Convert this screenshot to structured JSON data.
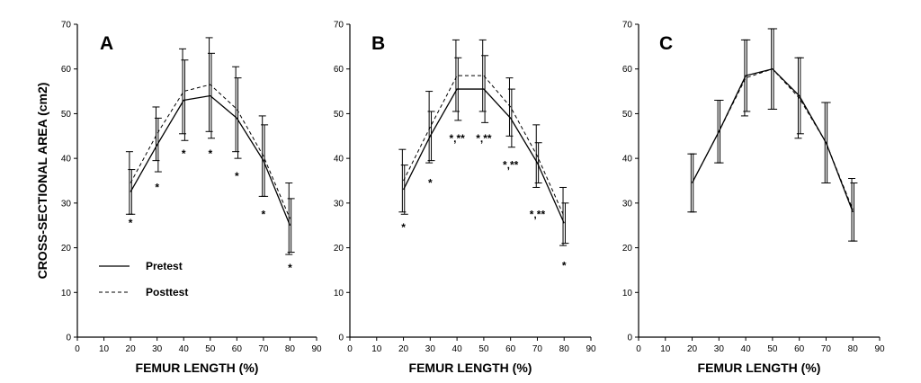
{
  "figure": {
    "ylabel": "CROSS-SECTIONAL AREA (cm2)",
    "legend": {
      "pretest_label": "Pretest",
      "posttest_label": "Posttest",
      "placement": "lower-left of panel A"
    }
  },
  "chart_data": [
    {
      "type": "line",
      "panel": "A",
      "xlabel": "FEMUR LENGTH (%)",
      "xlim": [
        0,
        90
      ],
      "ylim": [
        0,
        70
      ],
      "xticks": [
        0,
        10,
        20,
        30,
        40,
        50,
        60,
        70,
        80,
        90
      ],
      "yticks": [
        0,
        10,
        20,
        30,
        40,
        50,
        60,
        70
      ],
      "x": [
        20,
        30,
        40,
        50,
        60,
        70,
        80
      ],
      "series": [
        {
          "name": "Pretest",
          "style": "solid",
          "values": [
            32.5,
            43,
            53,
            54,
            49,
            39.5,
            25
          ],
          "err": [
            5,
            6,
            9,
            9.5,
            9,
            8,
            6
          ]
        },
        {
          "name": "Posttest",
          "style": "dashed",
          "values": [
            34.5,
            45.5,
            55,
            56.5,
            51,
            40.5,
            26.5
          ],
          "err": [
            7,
            6,
            9.5,
            10.5,
            9.5,
            9,
            8
          ]
        }
      ],
      "sig_markers": [
        {
          "x": 20,
          "y": 25.5,
          "text": "*"
        },
        {
          "x": 30,
          "y": 33.5,
          "text": "*"
        },
        {
          "x": 40,
          "y": 41,
          "text": "*"
        },
        {
          "x": 50,
          "y": 41,
          "text": "*"
        },
        {
          "x": 60,
          "y": 36,
          "text": "*"
        },
        {
          "x": 70,
          "y": 27.5,
          "text": "*"
        },
        {
          "x": 80,
          "y": 15.5,
          "text": "*"
        }
      ]
    },
    {
      "type": "line",
      "panel": "B",
      "xlabel": "FEMUR LENGTH (%)",
      "xlim": [
        0,
        90
      ],
      "ylim": [
        0,
        70
      ],
      "xticks": [
        0,
        10,
        20,
        30,
        40,
        50,
        60,
        70,
        80,
        90
      ],
      "yticks": [
        0,
        10,
        20,
        30,
        40,
        50,
        60,
        70
      ],
      "x": [
        20,
        30,
        40,
        50,
        60,
        70,
        80
      ],
      "series": [
        {
          "name": "Pretest",
          "style": "solid",
          "values": [
            33,
            45,
            55.5,
            55.5,
            49,
            39,
            25.5
          ],
          "err": [
            5.5,
            5.5,
            7,
            7.5,
            6.5,
            4.5,
            4.5
          ]
        },
        {
          "name": "Posttest",
          "style": "dashed",
          "values": [
            35,
            47,
            58.5,
            58.5,
            51.5,
            40.5,
            27
          ],
          "err": [
            7,
            8,
            8,
            8,
            6.5,
            7,
            6.5
          ]
        }
      ],
      "sig_markers": [
        {
          "x": 20,
          "y": 24.5,
          "text": "*"
        },
        {
          "x": 30,
          "y": 34.5,
          "text": "*"
        },
        {
          "x": 40,
          "y": 44.5,
          "text": "*,**"
        },
        {
          "x": 50,
          "y": 44.5,
          "text": "*,**"
        },
        {
          "x": 60,
          "y": 38.5,
          "text": "*,**"
        },
        {
          "x": 70,
          "y": 27.5,
          "text": "*,**"
        },
        {
          "x": 80,
          "y": 16,
          "text": "*"
        }
      ]
    },
    {
      "type": "line",
      "panel": "C",
      "xlabel": "FEMUR LENGTH (%)",
      "xlim": [
        0,
        90
      ],
      "ylim": [
        0,
        70
      ],
      "xticks": [
        0,
        10,
        20,
        30,
        40,
        50,
        60,
        70,
        80,
        90
      ],
      "yticks": [
        0,
        10,
        20,
        30,
        40,
        50,
        60,
        70
      ],
      "x": [
        20,
        30,
        40,
        50,
        60,
        70,
        80
      ],
      "series": [
        {
          "name": "Pretest",
          "style": "solid",
          "values": [
            34.5,
            46,
            58.5,
            60,
            54,
            43.5,
            28
          ],
          "err": [
            6.5,
            7,
            8,
            9,
            8.5,
            9,
            6.5
          ]
        },
        {
          "name": "Posttest",
          "style": "dashed",
          "values": [
            34.5,
            46,
            58,
            60,
            53.5,
            43.5,
            28.5
          ],
          "err": [
            6.5,
            7,
            8.5,
            9,
            9,
            9,
            7
          ]
        }
      ],
      "sig_markers": []
    }
  ]
}
